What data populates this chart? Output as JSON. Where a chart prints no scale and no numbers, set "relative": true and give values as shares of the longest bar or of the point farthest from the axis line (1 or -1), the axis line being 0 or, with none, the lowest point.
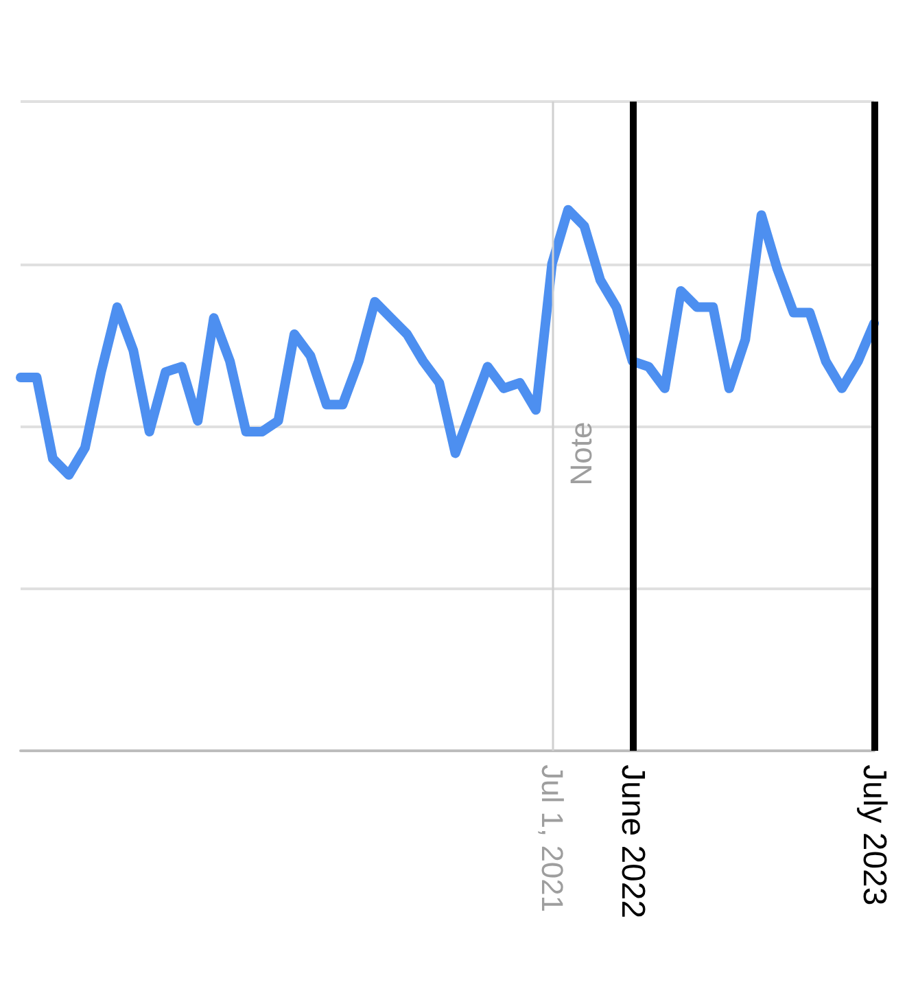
{
  "chart_data": {
    "type": "line",
    "relative": true,
    "grid": "y",
    "line_style": "solid",
    "categories": [
      null,
      null,
      null,
      null,
      null,
      null,
      null,
      null,
      null,
      null,
      null,
      null,
      null,
      null,
      null,
      null,
      null,
      null,
      null,
      null,
      null,
      null,
      null,
      null,
      null,
      null,
      null,
      null,
      null,
      null,
      null,
      null,
      null,
      "Jul 1, 2021",
      null,
      null,
      null,
      null,
      "June 2022",
      null,
      null,
      null,
      null,
      null,
      null,
      null,
      null,
      null,
      null,
      null,
      null,
      null,
      null,
      "July 2023"
    ],
    "series": [
      {
        "color": "#4d8ff0",
        "values": [
          0.69,
          0.69,
          0.54,
          0.51,
          0.56,
          0.7,
          0.82,
          0.74,
          0.59,
          0.7,
          0.71,
          0.61,
          0.8,
          0.72,
          0.59,
          0.59,
          0.61,
          0.77,
          0.73,
          0.64,
          0.64,
          0.72,
          0.83,
          0.8,
          0.77,
          0.72,
          0.68,
          0.55,
          0.63,
          0.71,
          0.67,
          0.68,
          0.63,
          0.9,
          1,
          0.97,
          0.87,
          0.82,
          0.72,
          0.71,
          0.67,
          0.85,
          0.82,
          0.82,
          0.67,
          0.76,
          0.99,
          0.89,
          0.81,
          0.81,
          0.72,
          0.67,
          0.72,
          0.79
        ]
      }
    ],
    "ref_lines": [
      {
        "axis": "x",
        "value": "Jul 1, 2021",
        "label": "Note",
        "color": "#d0d0d0"
      },
      {
        "axis": "x",
        "value": "June 2022",
        "color": "#000000"
      },
      {
        "axis": "x",
        "value": "July 2023",
        "color": "#000000"
      }
    ]
  }
}
